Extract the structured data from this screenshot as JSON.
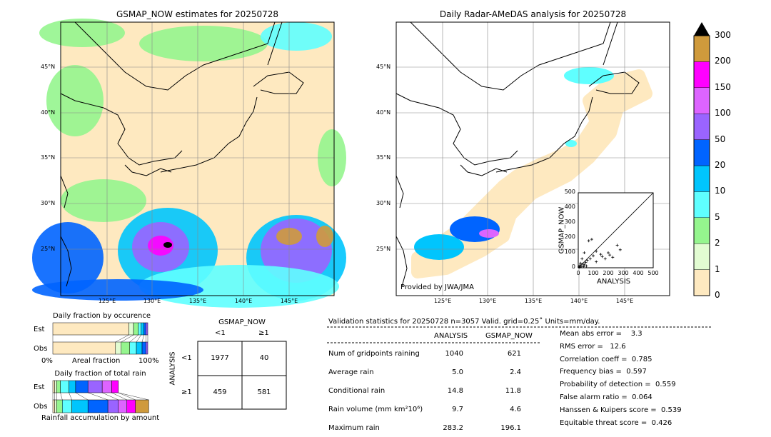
{
  "left_map": {
    "title": "GSMAP_NOW estimates for 20250728",
    "lon_ticks": [
      "125°E",
      "130°E",
      "135°E",
      "140°E",
      "145°E"
    ],
    "lat_ticks": [
      "45°N",
      "40°N",
      "35°N",
      "30°N",
      "25°N"
    ]
  },
  "right_map": {
    "title": "Daily Radar-AMeDAS analysis for 20250728",
    "lon_ticks": [
      "125°E",
      "130°E",
      "135°E",
      "140°E",
      "145°E"
    ],
    "lat_ticks": [
      "45°N",
      "40°N",
      "35°N",
      "30°N",
      "25°N"
    ],
    "credit": "Provided by JWA/JMA"
  },
  "colorbar": {
    "labels": [
      "0",
      "1",
      "2",
      "5",
      "10",
      "20",
      "50",
      "100",
      "150",
      "200",
      "300"
    ],
    "colors": [
      "#fee9c0",
      "#e2fcd2",
      "#95f58e",
      "#5fffff",
      "#00c5fd",
      "#0064ff",
      "#9a64ff",
      "#dd64ff",
      "#ff00ff",
      "#cf9a3c"
    ],
    "extend_color": "#000000"
  },
  "chart_data": {
    "type": "scatter",
    "xlabel": "ANALYSIS",
    "ylabel": "GSMAP_NOW",
    "xlim": [
      0,
      500
    ],
    "ylim": [
      0,
      500
    ],
    "ticks": [
      "0",
      "100",
      "200",
      "300",
      "400",
      "500"
    ],
    "points": [
      [
        5,
        5
      ],
      [
        10,
        15
      ],
      [
        20,
        10
      ],
      [
        30,
        25
      ],
      [
        15,
        30
      ],
      [
        40,
        20
      ],
      [
        50,
        35
      ],
      [
        60,
        50
      ],
      [
        80,
        60
      ],
      [
        100,
        80
      ],
      [
        120,
        40
      ],
      [
        150,
        90
      ],
      [
        180,
        60
      ],
      [
        200,
        100
      ],
      [
        230,
        70
      ],
      [
        260,
        150
      ],
      [
        280,
        120
      ],
      [
        70,
        180
      ],
      [
        90,
        190
      ],
      [
        40,
        100
      ],
      [
        25,
        60
      ],
      [
        120,
        110
      ],
      [
        160,
        75
      ],
      [
        210,
        85
      ],
      [
        10,
        5
      ],
      [
        35,
        8
      ],
      [
        55,
        12
      ]
    ]
  },
  "occurrence": {
    "title": "Daily fraction by occurence",
    "rows": [
      "Est",
      "Obs"
    ],
    "xlabel": "Areal fraction",
    "x_left": "0%",
    "x_right": "100%",
    "est": [
      0.8,
      0.05,
      0.05,
      0.03,
      0.03,
      0.02,
      0.02
    ],
    "obs": [
      0.66,
      0.06,
      0.09,
      0.07,
      0.06,
      0.04,
      0.02
    ]
  },
  "rain": {
    "title": "Daily fraction of total rain",
    "rows": [
      "Est",
      "Obs"
    ],
    "xlabel": "Rainfall accumulation by amount",
    "est": [
      0.02,
      0.02,
      0.04,
      0.09,
      0.07,
      0.13,
      0.15,
      0.1,
      0.07,
      0
    ],
    "obs": [
      0.02,
      0.02,
      0.06,
      0.1,
      0.17,
      0.21,
      0.11,
      0.09,
      0.09,
      0.14
    ]
  },
  "contingency": {
    "col_title": "GSMAP_NOW",
    "row_title": "ANALYSIS",
    "cols": [
      "<1",
      "≥1"
    ],
    "rows": [
      "<1",
      "≥1"
    ],
    "cells": [
      [
        "1977",
        "40"
      ],
      [
        "459",
        "581"
      ]
    ]
  },
  "stats": {
    "header": "Validation statistics for 20250728  n=3057 Valid. grid=0.25˚ Units=mm/day.",
    "cols": [
      "ANALYSIS",
      "GSMAP_NOW"
    ],
    "rows": [
      {
        "label": "Num of gridpoints raining",
        "a": "1040",
        "g": "621"
      },
      {
        "label": "Average rain",
        "a": "5.0",
        "g": "2.4"
      },
      {
        "label": "Conditional rain",
        "a": "14.8",
        "g": "11.8"
      },
      {
        "label": "Rain volume (mm km²10⁶)",
        "a": "9.7",
        "g": "4.6"
      },
      {
        "label": "Maximum rain",
        "a": "283.2",
        "g": "196.1"
      }
    ],
    "scores": [
      "Mean abs error =    3.3",
      "RMS error =   12.6",
      "Correlation coeff =  0.785",
      "Frequency bias =  0.597",
      "Probability of detection =  0.559",
      "False alarm ratio =  0.064",
      "Hanssen & Kuipers score =  0.539",
      "Equitable threat score =  0.426"
    ]
  }
}
